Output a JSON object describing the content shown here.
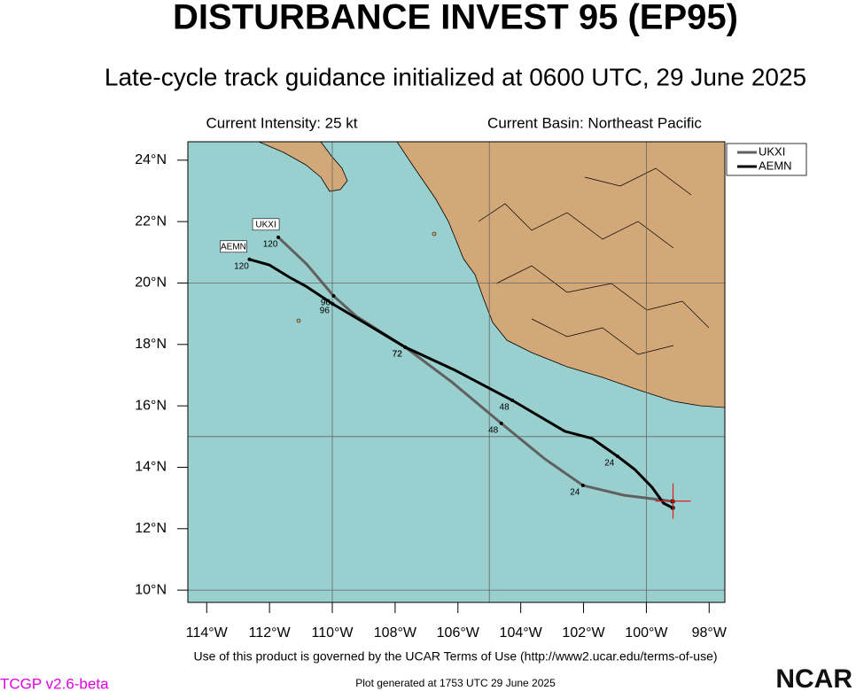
{
  "chart_data": {
    "type": "track",
    "title": "DISTURBANCE INVEST 95 (EP95)",
    "subtitle": "Late-cycle track guidance initialized at 0600 UTC, 29 June 2025",
    "intensity": "Current Intensity: 25 kt",
    "basin": "Current Basin: Northeast Pacific",
    "xlim": [
      -114.6,
      -97.5
    ],
    "ylim": [
      9.6,
      24.6
    ],
    "xticks": [
      {
        "value": -114,
        "label": "114°W"
      },
      {
        "value": -112,
        "label": "112°W"
      },
      {
        "value": -110,
        "label": "110°W"
      },
      {
        "value": -108,
        "label": "108°W"
      },
      {
        "value": -106,
        "label": "106°W"
      },
      {
        "value": -104,
        "label": "104°W"
      },
      {
        "value": -102,
        "label": "102°W"
      },
      {
        "value": -100,
        "label": "100°W"
      },
      {
        "value": -98,
        "label": "98°W"
      }
    ],
    "yticks": [
      {
        "value": 10,
        "label": "10°N"
      },
      {
        "value": 12,
        "label": "12°N"
      },
      {
        "value": 14,
        "label": "14°N"
      },
      {
        "value": 16,
        "label": "16°N"
      },
      {
        "value": 18,
        "label": "18°N"
      },
      {
        "value": 20,
        "label": "20°N"
      },
      {
        "value": 22,
        "label": "22°N"
      },
      {
        "value": 24,
        "label": "24°N"
      }
    ],
    "xgrid": [
      -110,
      -105,
      -100
    ],
    "ygrid": [
      10,
      15,
      20
    ],
    "current": {
      "lon": -99.15,
      "lat": 12.9,
      "color": "#e02020"
    },
    "legend": "upper right",
    "series": [
      {
        "name": "UKXI",
        "color": "#606060",
        "x": [
          -99.16,
          -99.79,
          -100.72,
          -102.02,
          -103.23,
          -104.62,
          -106.2,
          -107.68,
          -109.24,
          -109.96,
          -110.82,
          -111.72
        ],
        "values": [
          12.89,
          12.97,
          13.09,
          13.41,
          14.27,
          15.43,
          16.78,
          17.91,
          18.92,
          19.58,
          20.62,
          21.49
        ],
        "hour_labels": [
          null,
          null,
          null,
          "24",
          null,
          "48",
          null,
          "72",
          null,
          "96",
          null,
          "120"
        ]
      },
      {
        "name": "AEMN",
        "color": "#000000",
        "x": [
          -99.16,
          -99.45,
          -99.82,
          -100.37,
          -100.92,
          -101.73,
          -102.59,
          -104.27,
          -106.09,
          -107.68,
          -108.95,
          -109.99,
          -110.85,
          -111.37,
          -112.01,
          -112.64
        ],
        "values": [
          12.68,
          12.83,
          13.35,
          13.93,
          14.36,
          14.94,
          15.17,
          16.18,
          17.16,
          17.91,
          18.69,
          19.32,
          19.9,
          20.19,
          20.59,
          20.77
        ],
        "hour_labels": [
          null,
          null,
          null,
          null,
          "24",
          null,
          null,
          "48",
          null,
          "72",
          null,
          "96",
          null,
          null,
          null,
          "120"
        ]
      }
    ]
  },
  "footer": {
    "terms": "Use of this product is governed by the UCAR Terms of Use (http://www2.ucar.edu/terms-of-use)",
    "version": "TCGP v2.6-beta",
    "generated": "Plot generated at 1753 UTC   29 June 2025",
    "logo": "NCAR"
  }
}
